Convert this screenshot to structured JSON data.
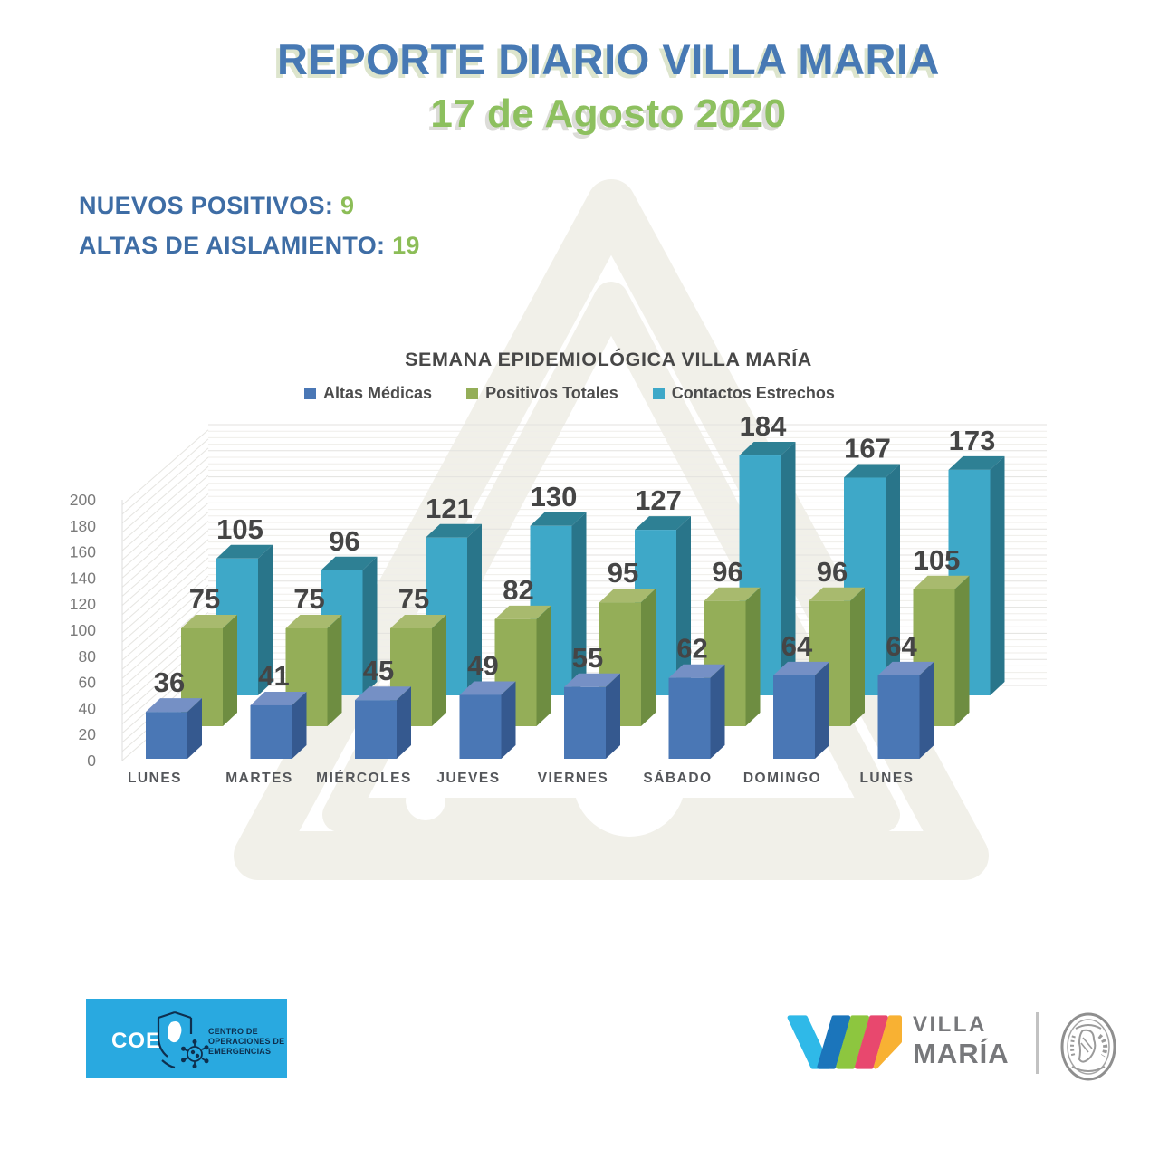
{
  "header": {
    "title": "REPORTE DIARIO VILLA MARIA",
    "date": "17 de Agosto 2020",
    "title_color": "#4779b4",
    "date_color": "#8dc05f"
  },
  "stats": {
    "nuevos": {
      "label": "NUEVOS POSITIVOS:",
      "value": "9"
    },
    "altas": {
      "label": "ALTAS DE AISLAMIENTO:",
      "value": "19"
    },
    "label_color": "#3e6da5",
    "value_color": "#8cbd57"
  },
  "chart_data": {
    "type": "bar",
    "variant": "3d",
    "title": "SEMANA EPIDEMIOLÓGICA VILLA MARÍA",
    "categories": [
      "LUNES",
      "MARTES",
      "MIÉRCOLES",
      "JUEVES",
      "VIERNES",
      "SÁBADO",
      "DOMINGO",
      "LUNES"
    ],
    "series": [
      {
        "name": "Altas Médicas",
        "color": "#4a77b5",
        "top": "#7590c5",
        "side": "#35598f",
        "values": [
          36,
          41,
          45,
          49,
          55,
          62,
          64,
          64
        ]
      },
      {
        "name": "Positivos Totales",
        "color": "#94ae58",
        "top": "#a8ba6e",
        "side": "#6e8d41",
        "values": [
          75,
          75,
          75,
          82,
          95,
          96,
          96,
          105
        ]
      },
      {
        "name": "Contactos Estrechos",
        "color": "#3ea8c8",
        "top": "#2e8094",
        "side": "#29758a",
        "values": [
          105,
          96,
          121,
          130,
          127,
          184,
          167,
          173
        ]
      }
    ],
    "ylim": [
      0,
      200
    ],
    "yticks": [
      0,
      20,
      40,
      60,
      80,
      100,
      120,
      140,
      160,
      180,
      200
    ],
    "legend_position": "top",
    "grid": true
  },
  "footer": {
    "coe": {
      "abbr": "COE",
      "lines": [
        "CENTRO DE",
        "OPERACIONES DE",
        "EMERGENCIAS"
      ],
      "bg_color": "#29a9e0",
      "text_color": "#0e2f4e"
    },
    "villa_maria": {
      "line1": "VILLA",
      "line2": "MARÍA",
      "text_color": "#77787b",
      "stripe_colors": [
        "#2fb9e8",
        "#1b75bb",
        "#8dc63f",
        "#e8486e",
        "#f8b133"
      ]
    }
  },
  "watermark_color": "#f1f0e9"
}
